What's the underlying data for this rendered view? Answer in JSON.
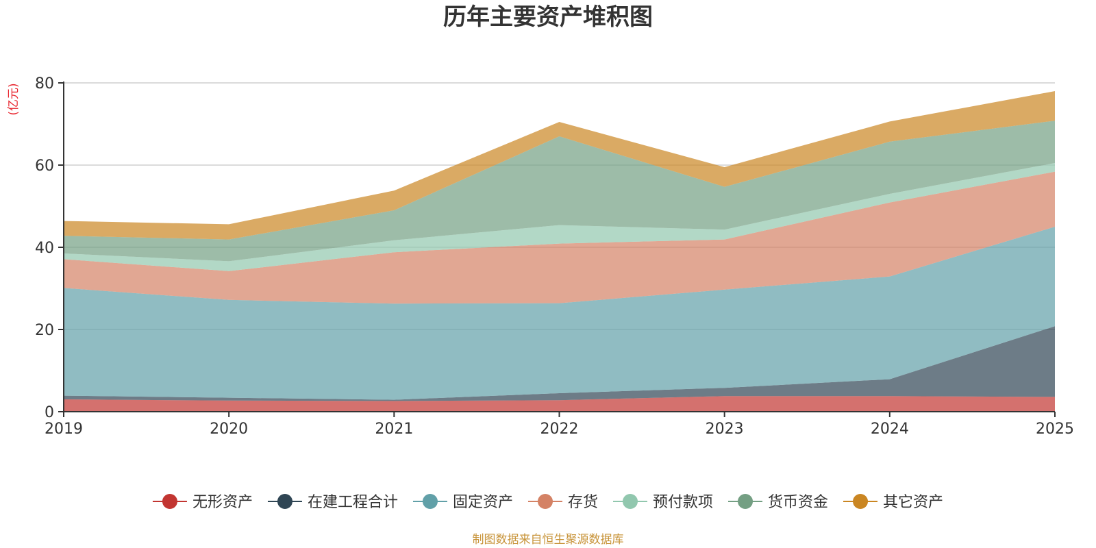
{
  "chart_data": {
    "type": "area",
    "stacked": true,
    "title": "历年主要资产堆积图",
    "ylabel": "(亿元)",
    "xlabel": "",
    "ylim": [
      0,
      80
    ],
    "yticks": [
      0,
      20,
      40,
      60,
      80
    ],
    "grid": true,
    "legend_position": "bottom",
    "categories": [
      "2019",
      "2020",
      "2021",
      "2022",
      "2023",
      "2024",
      "2025"
    ],
    "series": [
      {
        "name": "无形资产",
        "color": "#c23531",
        "values": [
          3.0,
          2.7,
          2.6,
          2.8,
          3.8,
          3.8,
          3.6
        ]
      },
      {
        "name": "在建工程合计",
        "color": "#2f4554",
        "values": [
          0.9,
          0.7,
          0.3,
          1.7,
          2.0,
          4.1,
          17.2
        ]
      },
      {
        "name": "固定资产",
        "color": "#61a0a8",
        "values": [
          26.2,
          23.8,
          23.4,
          21.9,
          23.9,
          25.0,
          24.2
        ]
      },
      {
        "name": "存货",
        "color": "#d48265",
        "values": [
          7.0,
          7.0,
          12.5,
          14.5,
          12.2,
          18.0,
          13.4
        ]
      },
      {
        "name": "预付款项",
        "color": "#91c7ae",
        "values": [
          1.4,
          2.4,
          2.9,
          4.5,
          2.4,
          2.1,
          2.1
        ]
      },
      {
        "name": "货币资金",
        "color": "#749f83",
        "values": [
          4.3,
          5.3,
          7.3,
          21.6,
          10.4,
          12.7,
          10.3
        ]
      },
      {
        "name": "其它资产",
        "color": "#ca8622",
        "values": [
          3.6,
          3.7,
          4.8,
          3.5,
          4.8,
          4.9,
          7.2
        ]
      }
    ],
    "source": "制图数据来自恒生聚源数据库"
  }
}
